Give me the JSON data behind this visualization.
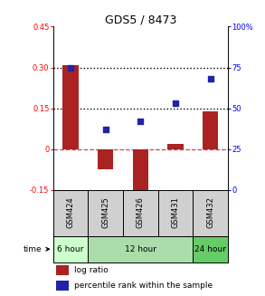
{
  "title": "GDS5 / 8473",
  "samples": [
    "GSM424",
    "GSM425",
    "GSM426",
    "GSM431",
    "GSM432"
  ],
  "log_ratio": [
    0.31,
    -0.075,
    -0.185,
    0.02,
    0.14
  ],
  "percentile_rank": [
    75,
    37,
    42,
    53,
    68
  ],
  "ylim_left": [
    -0.15,
    0.45
  ],
  "ylim_right": [
    0,
    100
  ],
  "yticks_left": [
    -0.15,
    0,
    0.15,
    0.3,
    0.45
  ],
  "ytick_labels_left": [
    "-0.15",
    "0",
    "0.15",
    "0.30",
    "0.45"
  ],
  "yticks_right": [
    0,
    25,
    50,
    75,
    100
  ],
  "ytick_labels_right": [
    "0",
    "25",
    "50",
    "75",
    "100%"
  ],
  "hline_dotted": [
    0.15,
    0.3
  ],
  "hline_dashed": 0.0,
  "bar_color": "#aa2222",
  "scatter_color": "#2222aa",
  "bar_width": 0.45,
  "group_info": [
    {
      "start": 0,
      "end": 0,
      "label": "6 hour",
      "color": "#ccffcc"
    },
    {
      "start": 1,
      "end": 3,
      "label": "12 hour",
      "color": "#aaddaa"
    },
    {
      "start": 4,
      "end": 4,
      "label": "24 hour",
      "color": "#66cc66"
    }
  ]
}
